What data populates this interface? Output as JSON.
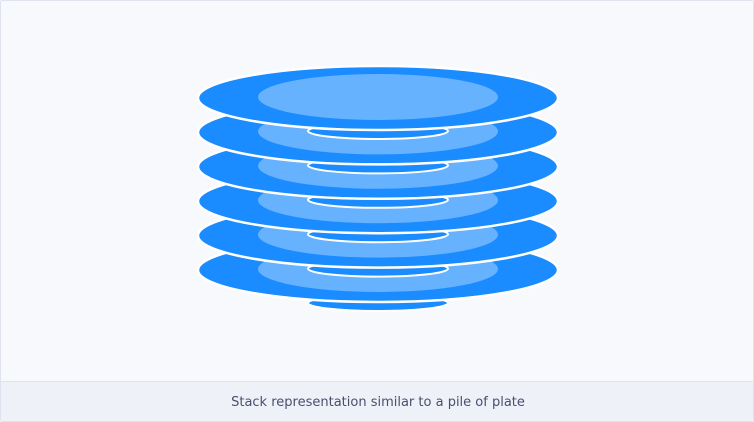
{
  "figure": {
    "caption": "Stack representation similar to a pile of plate",
    "illustration_icon": "stack-of-plates-icon",
    "plate_count": 6,
    "colors": {
      "plate": "#1a8cff",
      "plate_inner": "#66b2ff",
      "plate_outline": "#ffffff",
      "background": "#f7f9fc",
      "caption_background": "#eef1f8",
      "caption_text": "#4b4f6d"
    }
  }
}
